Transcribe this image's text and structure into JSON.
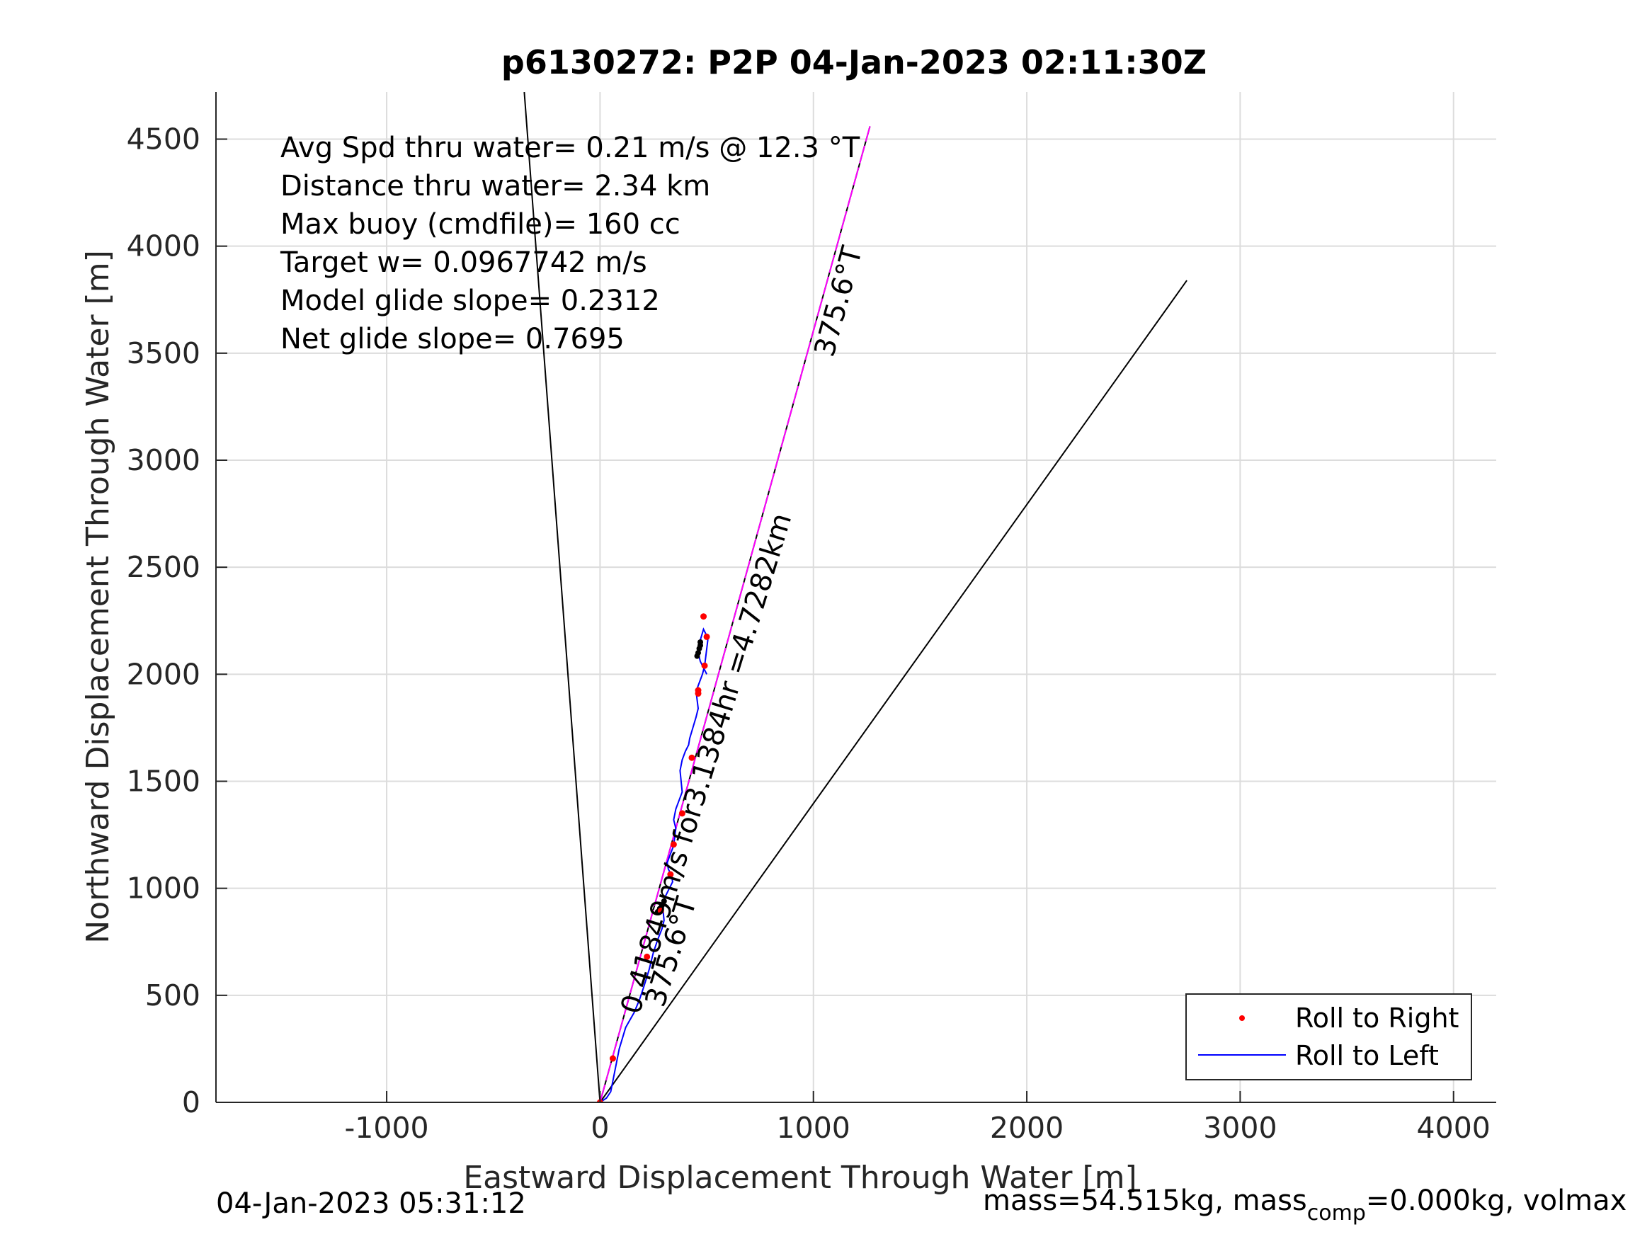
{
  "chart_data": {
    "type": "line",
    "title": "p6130272: P2P 04-Jan-2023 02:11:30Z",
    "xlabel": "Eastward Displacement Through Water [m]",
    "ylabel": "Northward Displacement Through Water [m]",
    "xlim": [
      -1800,
      4200
    ],
    "ylim": [
      0,
      4720
    ],
    "xticks": [
      -1000,
      0,
      1000,
      2000,
      3000,
      4000
    ],
    "yticks": [
      0,
      500,
      1000,
      1500,
      2000,
      2500,
      3000,
      3500,
      4000,
      4500
    ],
    "xtick_labels": [
      "-1000",
      "0",
      "1000",
      "2000",
      "3000",
      "4000"
    ],
    "ytick_labels": [
      "0",
      "500",
      "1000",
      "1500",
      "2000",
      "2500",
      "3000",
      "3500",
      "4000",
      "4500"
    ],
    "grid": true,
    "legend_position": "bottom-right",
    "info_lines": [
      "Avg Spd thru water=  0.21 m/s @  12.3 °T",
      "Distance thru water=  2.34 km",
      "Max buoy (cmdfile)= 160 cc",
      "Target w= 0.0967742 m/s",
      "Model glide slope= 0.2312",
      "Net glide slope= 0.7695"
    ],
    "annotations": [
      {
        "text": "375.6°T",
        "x": 1160,
        "y": 3730,
        "rotation": -75
      },
      {
        "text": "0.41849m/s for3.1384hr =4.7282km",
        "x": 540,
        "y": 1570,
        "rotation": -73
      },
      {
        "text": "375.6°T",
        "x": 375,
        "y": 690,
        "rotation": -73
      }
    ],
    "black_lines": [
      {
        "x": [
          0,
          -355
        ],
        "y": [
          0,
          4720
        ]
      },
      {
        "x": [
          0,
          2750
        ],
        "y": [
          0,
          3840
        ]
      },
      {
        "x": [
          0,
          1265
        ],
        "y": [
          0,
          4560
        ]
      }
    ],
    "magenta_line": {
      "x": [
        0,
        1265
      ],
      "y": [
        0,
        4560
      ]
    },
    "series": [
      {
        "name": "Roll to Right",
        "color": "#ff0000",
        "x": [
          0,
          60,
          220,
          285,
          330,
          345,
          385,
          430,
          460,
          490,
          500,
          485,
          460
        ],
        "y": [
          0,
          205,
          680,
          895,
          1065,
          1205,
          1350,
          1610,
          1910,
          2040,
          2175,
          2270,
          1925
        ]
      },
      {
        "name": "Roll to Left",
        "color": "#0000ff",
        "x": [
          0,
          30,
          50,
          70,
          90,
          120,
          160,
          185,
          205,
          230,
          250,
          270,
          290,
          300,
          295,
          300,
          320,
          340,
          335,
          320,
          315,
          330,
          345,
          350,
          355,
          345,
          355,
          370,
          385,
          380,
          375,
          385,
          400,
          415,
          420,
          435,
          450,
          460,
          455,
          450,
          465,
          480,
          490,
          495,
          500,
          505,
          495,
          485,
          470,
          460,
          470,
          490,
          500
        ],
        "y": [
          0,
          20,
          50,
          150,
          250,
          350,
          420,
          480,
          540,
          620,
          700,
          760,
          810,
          850,
          900,
          950,
          990,
          1030,
          1060,
          1090,
          1120,
          1160,
          1200,
          1240,
          1280,
          1320,
          1370,
          1410,
          1450,
          1500,
          1550,
          1600,
          1640,
          1670,
          1700,
          1750,
          1800,
          1840,
          1880,
          1920,
          1960,
          2000,
          2040,
          2080,
          2120,
          2160,
          2190,
          2210,
          2160,
          2100,
          2060,
          2020,
          2000
        ]
      }
    ],
    "black_dots": {
      "x": [
        270,
        280,
        290,
        300,
        455,
        460,
        465,
        470,
        470
      ],
      "y": [
        890,
        905,
        920,
        940,
        2085,
        2100,
        2120,
        2135,
        2150
      ]
    },
    "legend": [
      "Roll to Right",
      "Roll to Left"
    ]
  },
  "footer": {
    "left": "04-Jan-2023 05:31:12",
    "right_prefix": "mass=54.515kg, mass",
    "right_sub": "comp",
    "right_suffix": "=0.000kg, volmax"
  }
}
